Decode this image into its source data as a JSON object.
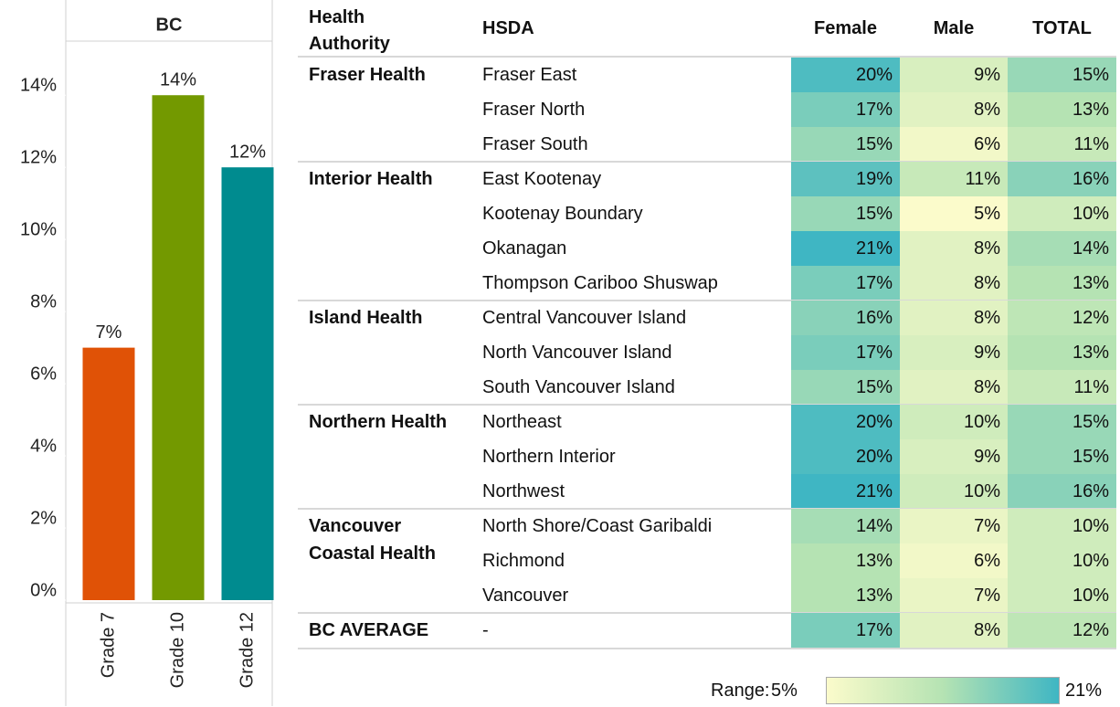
{
  "chart_data": {
    "type": "bar",
    "title": "BC",
    "categories": [
      "Grade 7",
      "Grade 10",
      "Grade 12"
    ],
    "values": [
      7,
      14,
      12
    ],
    "value_labels": [
      "7%",
      "14%",
      "12%"
    ],
    "colors": [
      "#e05206",
      "#739900",
      "#008b8f"
    ],
    "ylim": [
      0,
      15.5
    ],
    "yticks": [
      {
        "value": 0,
        "label": "0%"
      },
      {
        "value": 2,
        "label": "2%"
      },
      {
        "value": 4,
        "label": "4%"
      },
      {
        "value": 6,
        "label": "6%"
      },
      {
        "value": 8,
        "label": "8%"
      },
      {
        "value": 10,
        "label": "10%"
      },
      {
        "value": 12,
        "label": "12%"
      },
      {
        "value": 14,
        "label": "14%"
      }
    ]
  },
  "table": {
    "headers": [
      "Health Authority",
      "HSDA",
      "Female",
      "Male",
      "TOTAL"
    ],
    "groups": [
      {
        "authority": "Fraser Health",
        "rows": [
          {
            "hsda": "Fraser East",
            "cells": [
              {
                "value": 20,
                "label": "20%"
              },
              {
                "value": 9,
                "label": "9%"
              },
              {
                "value": 15,
                "label": "15%"
              }
            ]
          },
          {
            "hsda": "Fraser North",
            "cells": [
              {
                "value": 17,
                "label": "17%"
              },
              {
                "value": 8,
                "label": "8%"
              },
              {
                "value": 13,
                "label": "13%"
              }
            ]
          },
          {
            "hsda": "Fraser South",
            "cells": [
              {
                "value": 15,
                "label": "15%"
              },
              {
                "value": 6,
                "label": "6%"
              },
              {
                "value": 11,
                "label": "11%"
              }
            ]
          }
        ]
      },
      {
        "authority": "Interior Health",
        "rows": [
          {
            "hsda": "East Kootenay",
            "cells": [
              {
                "value": 19,
                "label": "19%"
              },
              {
                "value": 11,
                "label": "11%"
              },
              {
                "value": 16,
                "label": "16%"
              }
            ]
          },
          {
            "hsda": "Kootenay Boundary",
            "cells": [
              {
                "value": 15,
                "label": "15%"
              },
              {
                "value": 5,
                "label": "5%"
              },
              {
                "value": 10,
                "label": "10%"
              }
            ]
          },
          {
            "hsda": "Okanagan",
            "cells": [
              {
                "value": 21,
                "label": "21%"
              },
              {
                "value": 8,
                "label": "8%"
              },
              {
                "value": 14,
                "label": "14%"
              }
            ]
          },
          {
            "hsda": "Thompson Cariboo Shuswap",
            "cells": [
              {
                "value": 17,
                "label": "17%"
              },
              {
                "value": 8,
                "label": "8%"
              },
              {
                "value": 13,
                "label": "13%"
              }
            ]
          }
        ]
      },
      {
        "authority": "Island Health",
        "rows": [
          {
            "hsda": "Central Vancouver Island",
            "cells": [
              {
                "value": 16,
                "label": "16%"
              },
              {
                "value": 8,
                "label": "8%"
              },
              {
                "value": 12,
                "label": "12%"
              }
            ]
          },
          {
            "hsda": "North Vancouver Island",
            "cells": [
              {
                "value": 17,
                "label": "17%"
              },
              {
                "value": 9,
                "label": "9%"
              },
              {
                "value": 13,
                "label": "13%"
              }
            ]
          },
          {
            "hsda": "South Vancouver Island",
            "cells": [
              {
                "value": 15,
                "label": "15%"
              },
              {
                "value": 8,
                "label": "8%"
              },
              {
                "value": 11,
                "label": "11%"
              }
            ]
          }
        ]
      },
      {
        "authority": "Northern Health",
        "rows": [
          {
            "hsda": "Northeast",
            "cells": [
              {
                "value": 20,
                "label": "20%"
              },
              {
                "value": 10,
                "label": "10%"
              },
              {
                "value": 15,
                "label": "15%"
              }
            ]
          },
          {
            "hsda": "Northern Interior",
            "cells": [
              {
                "value": 20,
                "label": "20%"
              },
              {
                "value": 9,
                "label": "9%"
              },
              {
                "value": 15,
                "label": "15%"
              }
            ]
          },
          {
            "hsda": "Northwest",
            "cells": [
              {
                "value": 21,
                "label": "21%"
              },
              {
                "value": 10,
                "label": "10%"
              },
              {
                "value": 16,
                "label": "16%"
              }
            ]
          }
        ]
      },
      {
        "authority": "Vancouver Coastal Health",
        "rows": [
          {
            "hsda": "North Shore/Coast Garibaldi",
            "cells": [
              {
                "value": 14,
                "label": "14%"
              },
              {
                "value": 7,
                "label": "7%"
              },
              {
                "value": 10,
                "label": "10%"
              }
            ]
          },
          {
            "hsda": "Richmond",
            "cells": [
              {
                "value": 13,
                "label": "13%"
              },
              {
                "value": 6,
                "label": "6%"
              },
              {
                "value": 10,
                "label": "10%"
              }
            ]
          },
          {
            "hsda": "Vancouver",
            "cells": [
              {
                "value": 13,
                "label": "13%"
              },
              {
                "value": 7,
                "label": "7%"
              },
              {
                "value": 10,
                "label": "10%"
              }
            ]
          }
        ]
      },
      {
        "authority": "BC AVERAGE",
        "rows": [
          {
            "hsda": "-",
            "cells": [
              {
                "value": 17,
                "label": "17%"
              },
              {
                "value": 8,
                "label": "8%"
              },
              {
                "value": 12,
                "label": "12%"
              }
            ]
          }
        ]
      }
    ],
    "range": {
      "label": "Range:",
      "min": {
        "value": 5,
        "label": "5%"
      },
      "max": {
        "value": 21,
        "label": "21%"
      }
    }
  }
}
